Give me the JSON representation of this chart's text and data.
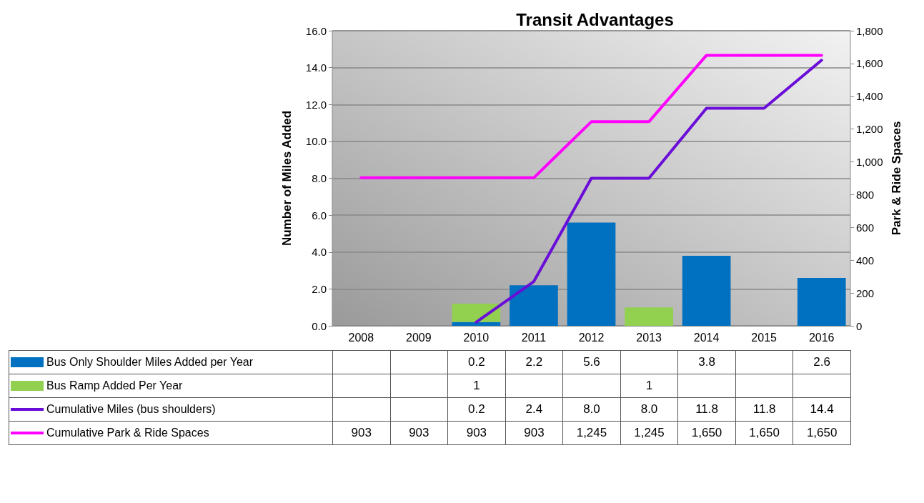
{
  "chart_data": {
    "type": "bar",
    "title": "Transit Advantages",
    "ylabel": "Number of Miles Added",
    "y2label": "Park & Ride Spaces",
    "categories": [
      "2008",
      "2009",
      "2010",
      "2011",
      "2012",
      "2013",
      "2014",
      "2015",
      "2016"
    ],
    "stacked": true,
    "legend": "bottom left",
    "grid": "y",
    "marker": "none",
    "line_style": "solid",
    "ylim": [
      0,
      16
    ],
    "yticks": [
      {
        "value": 0,
        "label": "0.0"
      },
      {
        "value": 2,
        "label": "2.0"
      },
      {
        "value": 4,
        "label": "4.0"
      },
      {
        "value": 6,
        "label": "6.0"
      },
      {
        "value": 8,
        "label": "8.0"
      },
      {
        "value": 10,
        "label": "10.0"
      },
      {
        "value": 12,
        "label": "12.0"
      },
      {
        "value": 14,
        "label": "14.0"
      },
      {
        "value": 16,
        "label": "16.0"
      }
    ],
    "y2lim": [
      0,
      1800
    ],
    "y2ticks": [
      0,
      {
        "value": 200,
        "label": "200"
      },
      {
        "value": 400,
        "label": "400"
      },
      {
        "value": 600,
        "label": "600"
      },
      {
        "value": 800,
        "label": "800"
      },
      {
        "value": 1000,
        "label": "1,000"
      },
      {
        "value": 1200,
        "label": "1,200"
      },
      {
        "value": 1400,
        "label": "1,400"
      },
      {
        "value": 1600,
        "label": "1,600"
      },
      {
        "value": 1800,
        "label": "1,800"
      }
    ],
    "series": [
      {
        "name": "Bus Only Shoulder Miles Added per Year",
        "color": "#0070c0",
        "values": [
          null,
          null,
          0.2,
          2.2,
          5.6,
          null,
          3.8,
          null,
          2.6
        ],
        "value_labels": [
          null,
          null,
          "0.2",
          "2.2",
          "5.6",
          null,
          "3.8",
          null,
          "2.6"
        ]
      },
      {
        "name": "Bus Ramp Added Per Year",
        "color": "#92d050",
        "values": [
          null,
          null,
          1,
          null,
          null,
          1,
          null,
          null,
          null
        ],
        "value_labels": [
          null,
          null,
          "1",
          null,
          null,
          "1",
          null,
          null,
          null
        ]
      },
      {
        "name": "Cumulative Miles (bus shoulders)",
        "type": "line",
        "color": "#6a0dd8",
        "values": [
          null,
          null,
          0.2,
          2.4,
          8.0,
          8.0,
          11.8,
          11.8,
          14.4
        ],
        "value_labels": [
          null,
          null,
          "0.2",
          "2.4",
          "8.0",
          "8.0",
          "11.8",
          "11.8",
          "14.4"
        ]
      },
      {
        "name": "Cumulative Park & Ride Spaces",
        "type": "line",
        "axis": "y2",
        "color": "#ff00ff",
        "values": [
          903,
          903,
          903,
          903,
          1245,
          1245,
          1650,
          1650,
          1650
        ],
        "value_labels": [
          "903",
          "903",
          "903",
          "903",
          "1,245",
          "1,245",
          "1,650",
          "1,650",
          "1,650"
        ]
      }
    ]
  }
}
